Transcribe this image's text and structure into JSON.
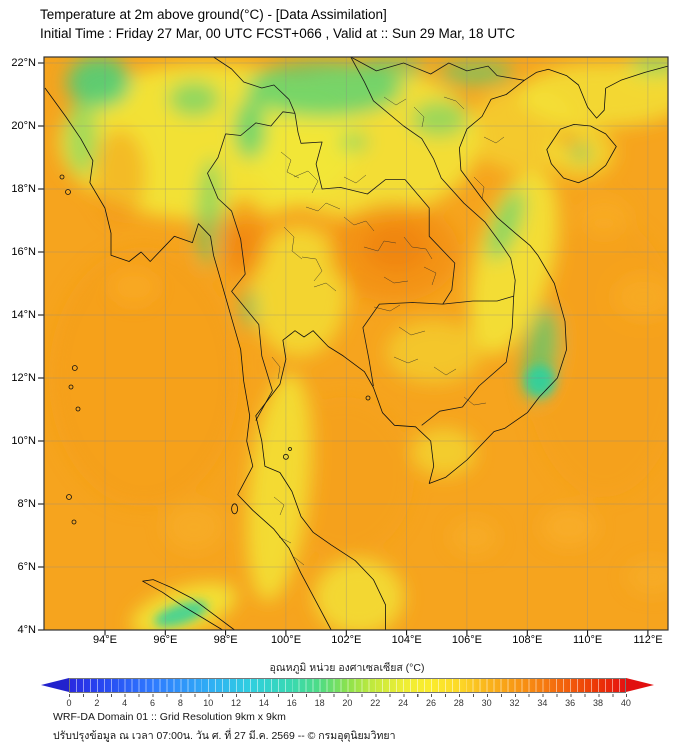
{
  "header": {
    "title_line1": "Temperature at 2m above ground(°C) - [Data Assimilation]",
    "title_line2": "Initial Time : Friday 27 Mar, 00 UTC FCST+066 , Valid at :: Sun 29 Mar, 18 UTC"
  },
  "map": {
    "lat_ticks": [
      "22°N",
      "20°N",
      "18°N",
      "16°N",
      "14°N",
      "12°N",
      "10°N",
      "8°N",
      "6°N",
      "4°N"
    ],
    "lon_ticks": [
      "94°E",
      "96°E",
      "98°E",
      "100°E",
      "102°E",
      "104°E",
      "106°E",
      "108°E",
      "110°E",
      "112°E"
    ]
  },
  "colorbar": {
    "label": "อุณหภูมิ หน่วย องศาเซลเซียส (°C)",
    "ticks": [
      "0",
      "2",
      "4",
      "6",
      "8",
      "10",
      "12",
      "14",
      "16",
      "18",
      "20",
      "22",
      "24",
      "26",
      "28",
      "30",
      "32",
      "34",
      "36",
      "38",
      "40"
    ],
    "range": {
      "min": 0,
      "max": 40,
      "step": 2,
      "unit": "°C"
    },
    "palette": {
      "underflow_arrow": "#2222cd",
      "cold_blue": "#2a2ae0",
      "cyan": "#2fcfe0",
      "green": "#44d07e",
      "yellow": "#f2e838",
      "orange": "#f6a41e",
      "hot_red": "#e51212",
      "overflow_arrow": "#e11010"
    }
  },
  "footer": {
    "line1": "WRF-DA Domain 01 :: Grid Resolution 9km x 9km",
    "line2": "ปรับปรุงข้อมูล ณ เวลา 07:00น. วัน ศ. ที่ 27 มี.ค. 2569 -- © กรมอุตุนิยมวิทยา"
  }
}
